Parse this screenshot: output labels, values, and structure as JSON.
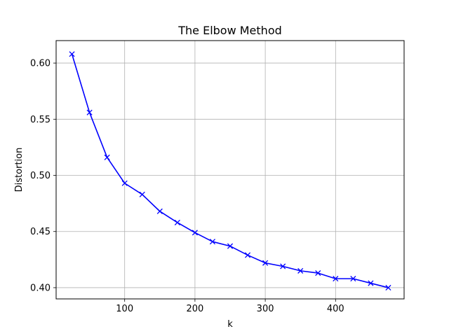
{
  "chart_data": {
    "type": "line",
    "title": "The Elbow Method",
    "xlabel": "k",
    "ylabel": "Distortion",
    "xlim": [
      2.5,
      497.5
    ],
    "ylim": [
      0.39,
      0.62
    ],
    "xticks": [
      100,
      200,
      300,
      400
    ],
    "yticks": [
      0.4,
      0.45,
      0.5,
      0.55,
      0.6
    ],
    "ytick_labels": [
      "0.40",
      "0.45",
      "0.50",
      "0.55",
      "0.60"
    ],
    "grid": true,
    "series": [
      {
        "color": "#0000ff",
        "marker": "x",
        "x": [
          25,
          50,
          75,
          100,
          125,
          150,
          175,
          200,
          225,
          250,
          275,
          300,
          325,
          350,
          375,
          400,
          425,
          450,
          475
        ],
        "y": [
          0.608,
          0.556,
          0.516,
          0.493,
          0.483,
          0.468,
          0.458,
          0.449,
          0.441,
          0.437,
          0.429,
          0.422,
          0.419,
          0.415,
          0.413,
          0.408,
          0.408,
          0.404,
          0.4
        ]
      }
    ]
  }
}
